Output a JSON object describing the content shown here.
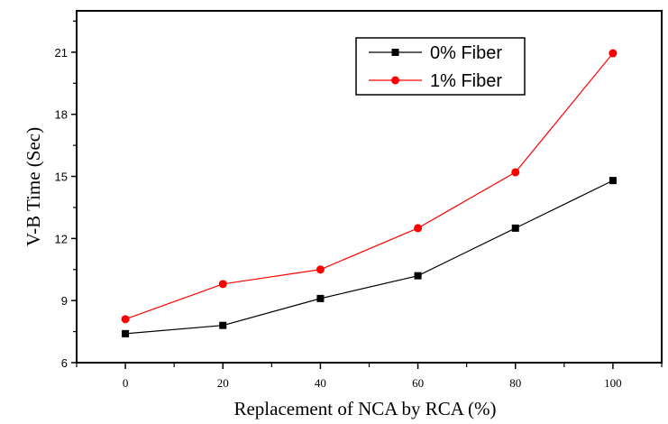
{
  "chart_data": {
    "type": "line",
    "title": "",
    "xlabel": "Replacement of NCA by RCA (%)",
    "ylabel": "V-B Time (Sec)",
    "x": [
      0,
      20,
      40,
      60,
      80,
      100
    ],
    "xlim": [
      -10,
      110
    ],
    "ylim": [
      6,
      23
    ],
    "xticks": [
      0,
      20,
      40,
      60,
      80,
      100
    ],
    "yticks": [
      6,
      9,
      12,
      15,
      18,
      21
    ],
    "grid": false,
    "legend_position": "top-right",
    "series": [
      {
        "name": "0% Fiber",
        "color": "#000000",
        "marker": "square",
        "values": [
          7.4,
          7.8,
          9.1,
          10.2,
          12.5,
          14.8
        ]
      },
      {
        "name": "1% Fiber",
        "color": "#ff0000",
        "marker": "circle",
        "values": [
          8.1,
          9.8,
          10.5,
          12.5,
          15.2,
          20.95
        ]
      }
    ]
  }
}
